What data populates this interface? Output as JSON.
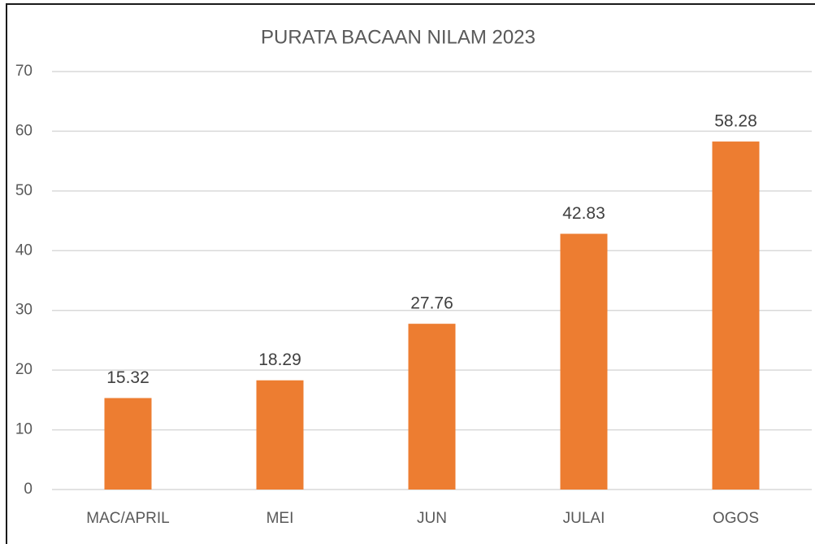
{
  "chart_data": {
    "type": "bar",
    "title": "PURATA BACAAN NILAM 2023",
    "categories": [
      "MAC/APRIL",
      "MEI",
      "JUN",
      "JULAI",
      "OGOS"
    ],
    "values": [
      15.32,
      18.29,
      27.76,
      42.83,
      58.28
    ],
    "color": "#ed7d31",
    "ylim": [
      0,
      70
    ],
    "yticks": [
      0,
      10,
      20,
      30,
      40,
      50,
      60,
      70
    ],
    "grid": true
  }
}
